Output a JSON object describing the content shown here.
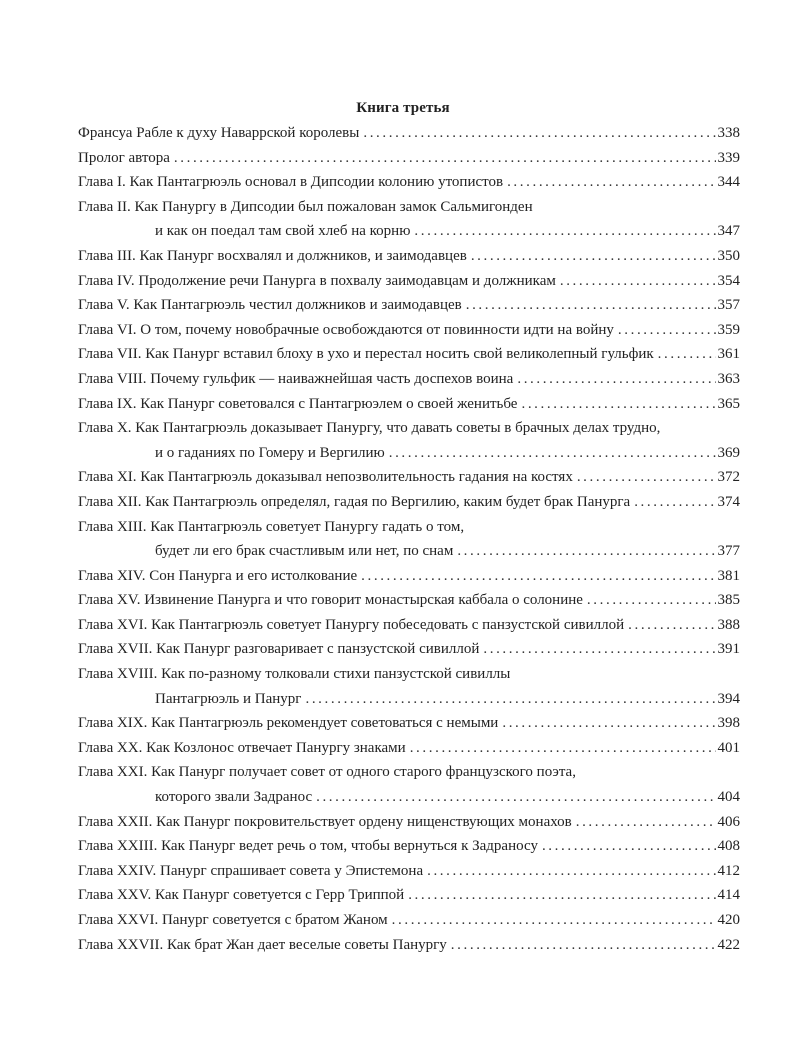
{
  "title": "Книга третья",
  "entries": [
    {
      "lines": [
        "Франсуа Рабле к духу Наваррской королевы"
      ],
      "page": "338"
    },
    {
      "lines": [
        "Пролог автора"
      ],
      "page": "339"
    },
    {
      "lines": [
        "Глава I. Как Пантагрюэль основал в Дипсодии колонию утопистов"
      ],
      "page": "344"
    },
    {
      "lines": [
        "Глава II. Как Панургу в Дипсодии был пожалован замок Сальмигонден",
        "и как он поедал там свой хлеб на корню"
      ],
      "page": "347"
    },
    {
      "lines": [
        "Глава III. Как Панург восхвалял и должников, и заимодавцев"
      ],
      "page": "350"
    },
    {
      "lines": [
        "Глава IV. Продолжение речи Панурга в похвалу заимодавцам и должникам"
      ],
      "page": "354"
    },
    {
      "lines": [
        "Глава V. Как Пантагрюэль честил должников и заимодавцев"
      ],
      "page": "357"
    },
    {
      "lines": [
        "Глава VI. О том, почему новобрачные освобождаются от повинности идти на войну"
      ],
      "page": "359"
    },
    {
      "lines": [
        "Глава VII. Как Панург вставил блоху в ухо и перестал носить свой великолепный гульфик"
      ],
      "page": "361"
    },
    {
      "lines": [
        "Глава VIII. Почему гульфик — наиважнейшая часть доспехов воина"
      ],
      "page": "363"
    },
    {
      "lines": [
        "Глава IX. Как Панург советовался с Пантагрюэлем о своей женитьбе"
      ],
      "page": "365"
    },
    {
      "lines": [
        "Глава X. Как Пантагрюэль доказывает Панургу, что давать советы в брачных делах трудно,",
        "и о гаданиях по Гомеру и Вергилию"
      ],
      "page": "369"
    },
    {
      "lines": [
        "Глава XI. Как Пантагрюэль доказывал непозволительность гадания на костях"
      ],
      "page": "372"
    },
    {
      "lines": [
        "Глава XII. Как Пантагрюэль определял, гадая по Вергилию, каким будет брак Панурга"
      ],
      "page": "374"
    },
    {
      "lines": [
        "Глава XIII. Как Пантагрюэль советует Панургу гадать о том,",
        "будет ли его брак счастливым или нет, по снам"
      ],
      "page": "377"
    },
    {
      "lines": [
        "Глава XIV. Сон Панурга и его истолкование"
      ],
      "page": "381"
    },
    {
      "lines": [
        "Глава XV. Извинение Панурга и что говорит монастырская каббала о солонине"
      ],
      "page": "385"
    },
    {
      "lines": [
        "Глава XVI. Как Пантагрюэль советует Панургу побеседовать с панзустской сивиллой"
      ],
      "page": "388"
    },
    {
      "lines": [
        "Глава XVII. Как Панург разговаривает с панзустской сивиллой"
      ],
      "page": "391"
    },
    {
      "lines": [
        "Глава XVIII. Как по-разному толковали стихи панзустской сивиллы",
        "Пантагрюэль и Панург"
      ],
      "page": "394"
    },
    {
      "lines": [
        "Глава XIX. Как Пантагрюэль рекомендует советоваться с немыми"
      ],
      "page": "398"
    },
    {
      "lines": [
        "Глава XX. Как Козлонос отвечает Панургу знаками"
      ],
      "page": "401"
    },
    {
      "lines": [
        "Глава XXI. Как Панург получает совет от одного старого французского поэта,",
        "которого звали Задранос"
      ],
      "page": "404"
    },
    {
      "lines": [
        "Глава XXII. Как Панург покровительствует ордену нищенствующих монахов"
      ],
      "page": "406"
    },
    {
      "lines": [
        "Глава XXIII. Как Панург ведет речь о том, чтобы вернуться к Задраносу"
      ],
      "page": "408"
    },
    {
      "lines": [
        "Глава XXIV. Панург спрашивает совета у Эпистемона"
      ],
      "page": "412"
    },
    {
      "lines": [
        "Глава XXV. Как Панург советуется с Герр Триппой"
      ],
      "page": "414"
    },
    {
      "lines": [
        "Глава XXVI. Панург советуется с братом Жаном"
      ],
      "page": "420"
    },
    {
      "lines": [
        "Глава XXVII. Как брат Жан дает веселые советы Панургу"
      ],
      "page": "422"
    }
  ]
}
